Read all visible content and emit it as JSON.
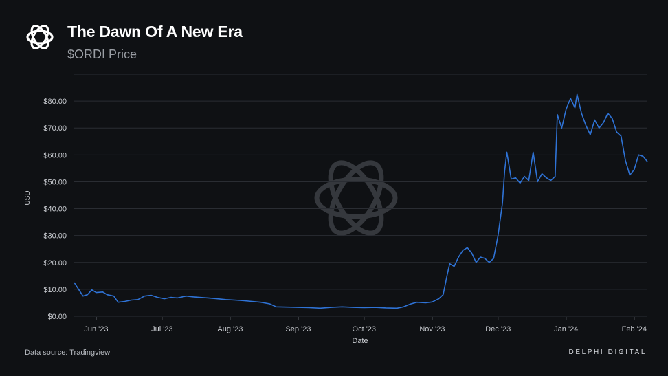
{
  "header": {
    "title": "The Dawn Of A New Era",
    "subtitle": "$ORDI Price",
    "logo_icon": "delphi-flower-logo"
  },
  "footer": {
    "source": "Data source: Tradingview",
    "brand": "DELPHI DIGITAL"
  },
  "colors": {
    "background": "#0f1114",
    "line": "#2f73d6",
    "grid": "#2a2d33",
    "text": "#c9ccd1"
  },
  "chart_data": {
    "type": "line",
    "title": "The Dawn Of A New Era",
    "subtitle": "$ORDI Price",
    "xlabel": "Date",
    "ylabel": "USD",
    "ylim": [
      0,
      90
    ],
    "xlim": [
      "2023-05-22",
      "2024-02-07"
    ],
    "grid": true,
    "yticks": [
      {
        "value": 0,
        "label": "$0.00"
      },
      {
        "value": 10,
        "label": "$10.00"
      },
      {
        "value": 20,
        "label": "$20.00"
      },
      {
        "value": 30,
        "label": "$30.00"
      },
      {
        "value": 40,
        "label": "$40.00"
      },
      {
        "value": 50,
        "label": "$50.00"
      },
      {
        "value": 60,
        "label": "$60.00"
      },
      {
        "value": 70,
        "label": "$70.00"
      },
      {
        "value": 80,
        "label": "$80.00"
      }
    ],
    "xticks": [
      {
        "date": "2023-06-01",
        "label": "Jun '23"
      },
      {
        "date": "2023-07-01",
        "label": "Jul '23"
      },
      {
        "date": "2023-08-01",
        "label": "Aug '23"
      },
      {
        "date": "2023-09-01",
        "label": "Sep '23"
      },
      {
        "date": "2023-10-01",
        "label": "Oct '23"
      },
      {
        "date": "2023-11-01",
        "label": "Nov '23"
      },
      {
        "date": "2023-12-01",
        "label": "Dec '23"
      },
      {
        "date": "2024-01-01",
        "label": "Jan '24"
      },
      {
        "date": "2024-02-01",
        "label": "Feb '24"
      }
    ],
    "series": [
      {
        "points": [
          [
            "2023-05-22",
            12.5
          ],
          [
            "2023-05-24",
            10.0
          ],
          [
            "2023-05-26",
            7.5
          ],
          [
            "2023-05-28",
            8.0
          ],
          [
            "2023-05-30",
            9.8
          ],
          [
            "2023-06-01",
            8.8
          ],
          [
            "2023-06-04",
            9.0
          ],
          [
            "2023-06-06",
            8.0
          ],
          [
            "2023-06-09",
            7.5
          ],
          [
            "2023-06-11",
            5.2
          ],
          [
            "2023-06-14",
            5.5
          ],
          [
            "2023-06-17",
            6.0
          ],
          [
            "2023-06-20",
            6.2
          ],
          [
            "2023-06-23",
            7.5
          ],
          [
            "2023-06-26",
            7.8
          ],
          [
            "2023-06-29",
            7.0
          ],
          [
            "2023-07-02",
            6.5
          ],
          [
            "2023-07-05",
            7.0
          ],
          [
            "2023-07-08",
            6.8
          ],
          [
            "2023-07-12",
            7.5
          ],
          [
            "2023-07-15",
            7.2
          ],
          [
            "2023-07-18",
            7.0
          ],
          [
            "2023-07-22",
            6.8
          ],
          [
            "2023-07-26",
            6.5
          ],
          [
            "2023-07-30",
            6.2
          ],
          [
            "2023-08-03",
            6.0
          ],
          [
            "2023-08-07",
            5.8
          ],
          [
            "2023-08-11",
            5.5
          ],
          [
            "2023-08-15",
            5.2
          ],
          [
            "2023-08-19",
            4.6
          ],
          [
            "2023-08-22",
            3.5
          ],
          [
            "2023-08-27",
            3.4
          ],
          [
            "2023-09-01",
            3.3
          ],
          [
            "2023-09-06",
            3.2
          ],
          [
            "2023-09-11",
            3.0
          ],
          [
            "2023-09-16",
            3.3
          ],
          [
            "2023-09-21",
            3.5
          ],
          [
            "2023-09-26",
            3.3
          ],
          [
            "2023-10-01",
            3.2
          ],
          [
            "2023-10-06",
            3.3
          ],
          [
            "2023-10-11",
            3.1
          ],
          [
            "2023-10-16",
            3.0
          ],
          [
            "2023-10-19",
            3.5
          ],
          [
            "2023-10-22",
            4.5
          ],
          [
            "2023-10-25",
            5.2
          ],
          [
            "2023-10-29",
            5.0
          ],
          [
            "2023-11-01",
            5.3
          ],
          [
            "2023-11-04",
            6.5
          ],
          [
            "2023-11-06",
            8.0
          ],
          [
            "2023-11-07",
            12.0
          ],
          [
            "2023-11-08",
            16.0
          ],
          [
            "2023-11-09",
            19.5
          ],
          [
            "2023-11-11",
            18.5
          ],
          [
            "2023-11-13",
            22.0
          ],
          [
            "2023-11-15",
            24.5
          ],
          [
            "2023-11-17",
            25.5
          ],
          [
            "2023-11-19",
            23.5
          ],
          [
            "2023-11-21",
            20.0
          ],
          [
            "2023-11-23",
            22.0
          ],
          [
            "2023-11-25",
            21.5
          ],
          [
            "2023-11-27",
            20.0
          ],
          [
            "2023-11-29",
            21.5
          ],
          [
            "2023-12-01",
            30.0
          ],
          [
            "2023-12-03",
            42.0
          ],
          [
            "2023-12-04",
            54.0
          ],
          [
            "2023-12-05",
            61.0
          ],
          [
            "2023-12-07",
            51.0
          ],
          [
            "2023-12-09",
            51.5
          ],
          [
            "2023-12-11",
            49.5
          ],
          [
            "2023-12-13",
            52.0
          ],
          [
            "2023-12-15",
            50.5
          ],
          [
            "2023-12-17",
            61.0
          ],
          [
            "2023-12-19",
            50.0
          ],
          [
            "2023-12-21",
            53.0
          ],
          [
            "2023-12-23",
            51.5
          ],
          [
            "2023-12-25",
            50.5
          ],
          [
            "2023-12-27",
            52.0
          ],
          [
            "2023-12-28",
            75.0
          ],
          [
            "2023-12-30",
            70.0
          ],
          [
            "2024-01-01",
            77.0
          ],
          [
            "2024-01-03",
            81.0
          ],
          [
            "2024-01-05",
            77.5
          ],
          [
            "2024-01-06",
            82.5
          ],
          [
            "2024-01-08",
            75.5
          ],
          [
            "2024-01-10",
            71.0
          ],
          [
            "2024-01-12",
            67.5
          ],
          [
            "2024-01-14",
            73.0
          ],
          [
            "2024-01-16",
            70.0
          ],
          [
            "2024-01-18",
            72.0
          ],
          [
            "2024-01-20",
            75.5
          ],
          [
            "2024-01-22",
            73.5
          ],
          [
            "2024-01-24",
            68.5
          ],
          [
            "2024-01-26",
            67.0
          ],
          [
            "2024-01-28",
            58.0
          ],
          [
            "2024-01-30",
            52.5
          ],
          [
            "2024-02-01",
            54.5
          ],
          [
            "2024-02-03",
            60.0
          ],
          [
            "2024-02-05",
            59.5
          ],
          [
            "2024-02-07",
            57.5
          ]
        ]
      }
    ]
  }
}
